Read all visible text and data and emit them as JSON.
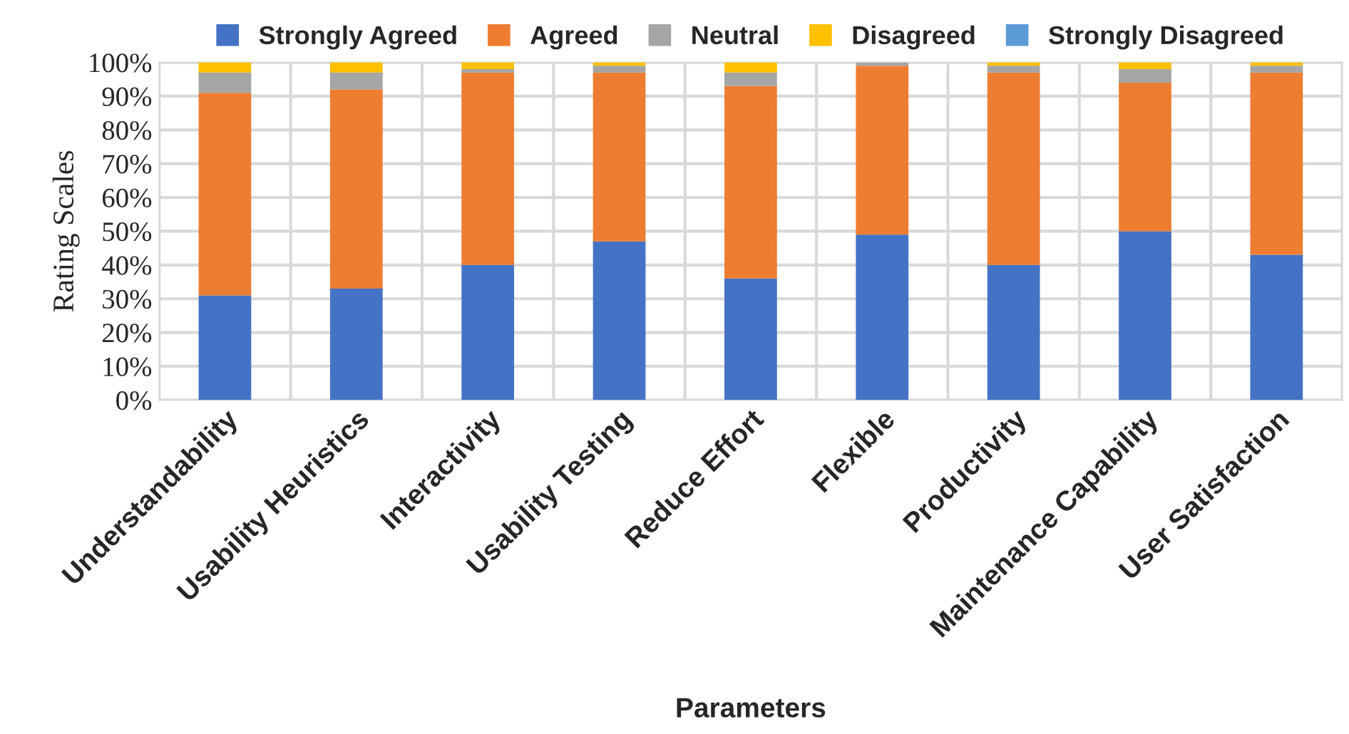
{
  "chart_data": {
    "type": "bar",
    "stacked": true,
    "xlabel": "Parameters",
    "ylabel": "Rating Scales",
    "categories": [
      "Understandability",
      "Usability Heuristics",
      "Interactivity",
      "Usability Testing",
      "Reduce Effort",
      "Flexible",
      "Productivity",
      "Maintenance Capability",
      "User Satisfaction"
    ],
    "series": [
      {
        "name": "Strongly Agreed",
        "color": "#4472c4",
        "values": [
          31,
          33,
          40,
          47,
          36,
          49,
          40,
          50,
          43
        ]
      },
      {
        "name": "Agreed",
        "color": "#ed7d31",
        "values": [
          60,
          59,
          57,
          50,
          57,
          50,
          57,
          44,
          54
        ]
      },
      {
        "name": "Neutral",
        "color": "#a5a5a5",
        "values": [
          6,
          5,
          1,
          2,
          4,
          1,
          2,
          4,
          2
        ]
      },
      {
        "name": "Disagreed",
        "color": "#ffc000",
        "values": [
          3,
          3,
          2,
          1,
          3,
          0,
          1,
          2,
          1
        ]
      },
      {
        "name": "Strongly Disagreed",
        "color": "#5b9bd5",
        "values": [
          0,
          0,
          0,
          0,
          0,
          0,
          0,
          0,
          0
        ]
      }
    ],
    "ylim": [
      0,
      100
    ],
    "yticks": [
      {
        "value": 0,
        "label": "0%"
      },
      {
        "value": 10,
        "label": "10%"
      },
      {
        "value": 20,
        "label": "20%"
      },
      {
        "value": 30,
        "label": "30%"
      },
      {
        "value": 40,
        "label": "40%"
      },
      {
        "value": 50,
        "label": "50%"
      },
      {
        "value": 60,
        "label": "60%"
      },
      {
        "value": 70,
        "label": "70%"
      },
      {
        "value": 80,
        "label": "80%"
      },
      {
        "value": 90,
        "label": "90%"
      },
      {
        "value": 100,
        "label": "100%"
      }
    ],
    "grid": true,
    "legend": "top"
  }
}
